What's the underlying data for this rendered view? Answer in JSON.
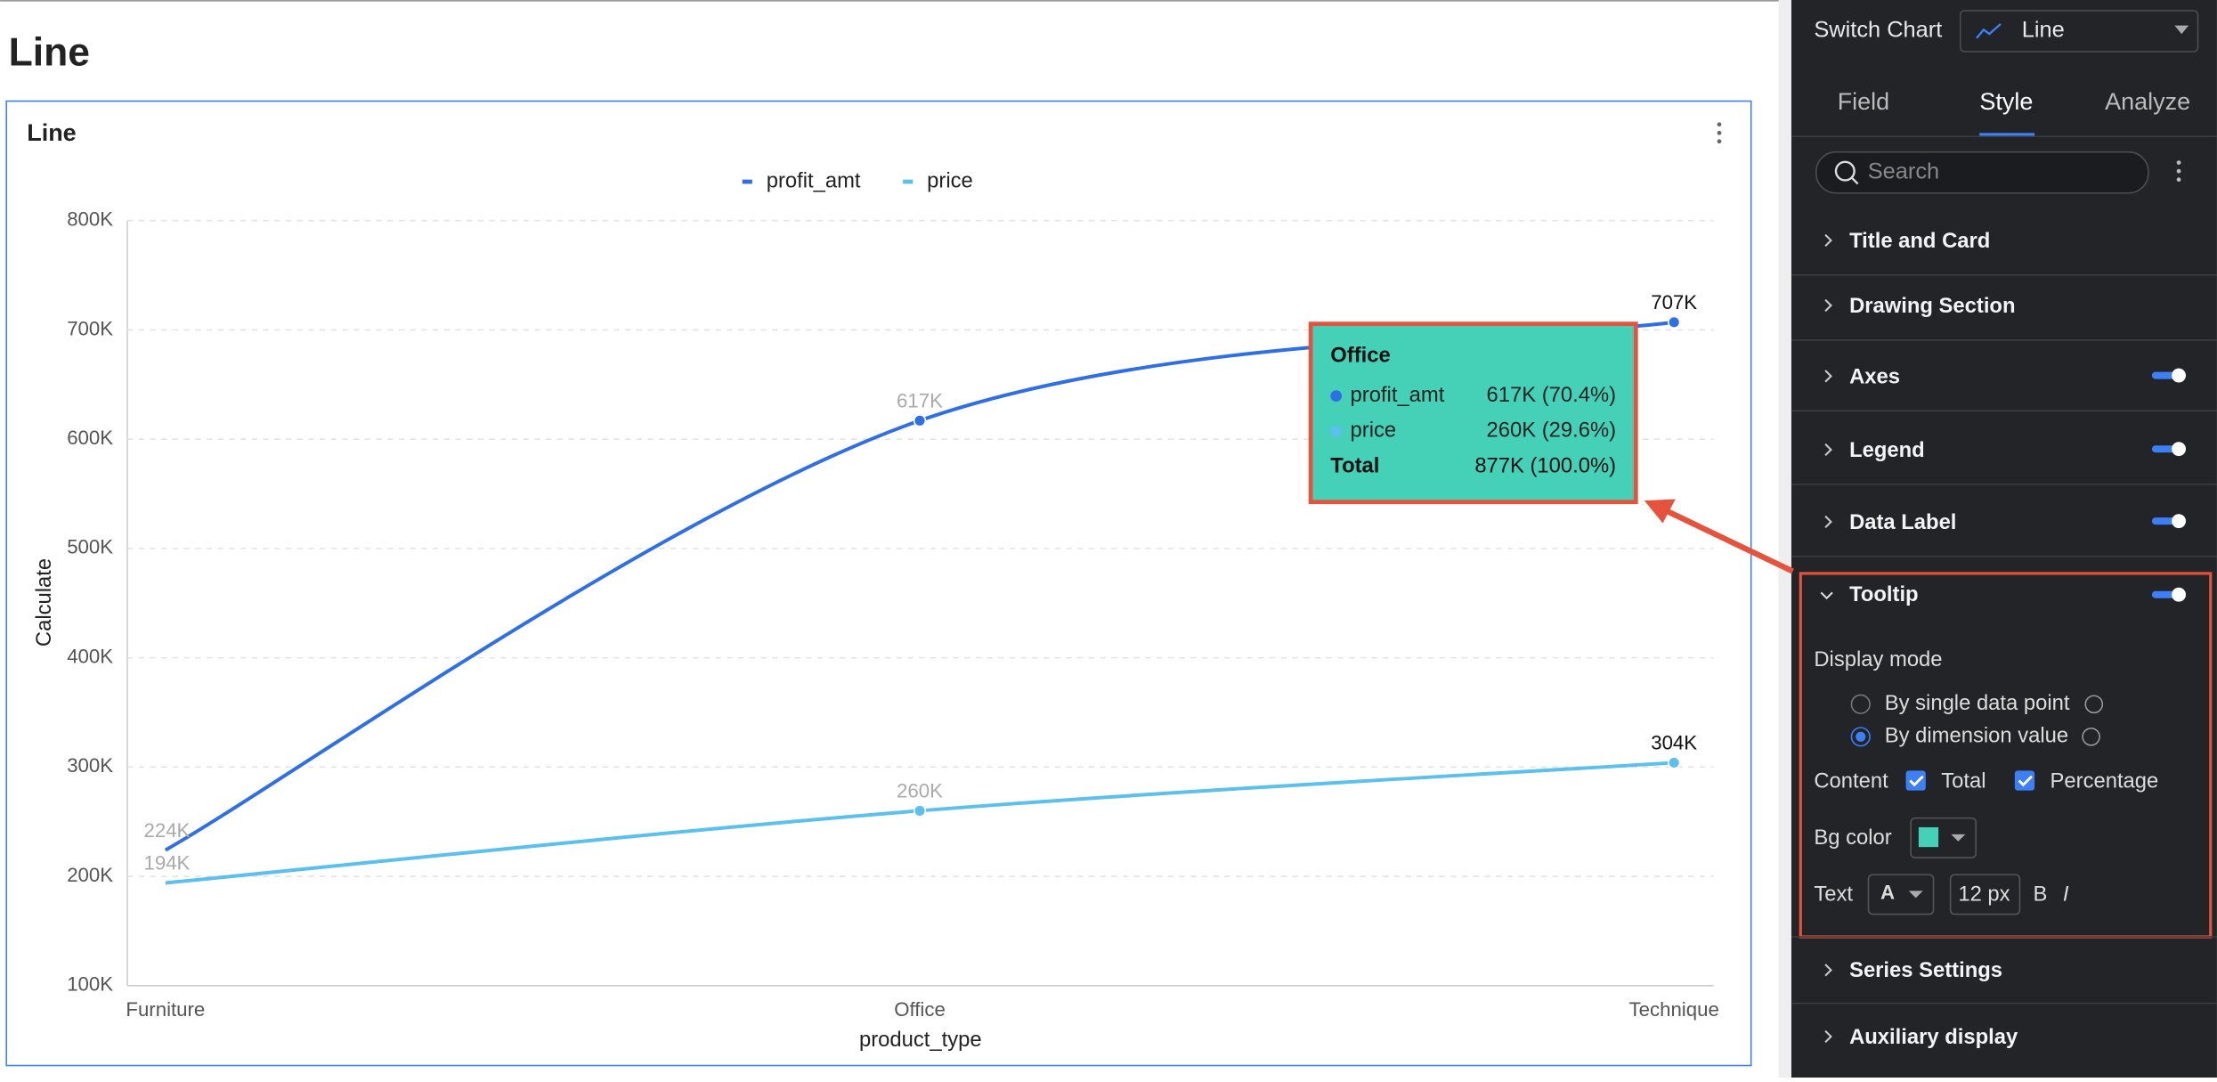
{
  "page_title": "Line",
  "chart_data": {
    "type": "line",
    "title": "Line",
    "categories": [
      "Furniture",
      "Office",
      "Technique"
    ],
    "series": [
      {
        "name": "profit_amt",
        "color": "#2f6fe4",
        "values": [
          224000,
          617000,
          707000
        ],
        "value_labels": [
          "224K",
          "617K",
          "707K"
        ]
      },
      {
        "name": "price",
        "color": "#5bc0eb",
        "values": [
          194000,
          260000,
          304000
        ],
        "value_labels": [
          "194K",
          "260K",
          "304K"
        ]
      }
    ],
    "ylim": [
      100000,
      800000
    ],
    "yticks": [
      {
        "value": 100000,
        "label": "100K"
      },
      {
        "value": 200000,
        "label": "200K"
      },
      {
        "value": 300000,
        "label": "300K"
      },
      {
        "value": 400000,
        "label": "400K"
      },
      {
        "value": 500000,
        "label": "500K"
      },
      {
        "value": 600000,
        "label": "600K"
      },
      {
        "value": 700000,
        "label": "700K"
      },
      {
        "value": 800000,
        "label": "800K"
      }
    ],
    "xlabel": "product_type",
    "ylabel": "Calculate",
    "grid": true,
    "legend": "top",
    "tooltip": {
      "rows": [
        "617K (70.4%)",
        "260K (29.6%)"
      ],
      "total_label": "Total",
      "total": "877K (100.0%)"
    }
  },
  "panel": {
    "switch_chart_label": "Switch Chart",
    "chart_type": "Line",
    "tabs": [
      "Field",
      "Style",
      "Analyze"
    ],
    "search_placeholder": "Search",
    "sections": [
      "Title and Card",
      "Drawing Section",
      "Axes",
      "Legend",
      "Data Label"
    ],
    "tooltip": {
      "title": "Tooltip",
      "display_mode_label": "Display mode",
      "modes": [
        "By single data point",
        "By dimension value"
      ],
      "content_label": "Content",
      "content_options": [
        "Total",
        "Percentage"
      ],
      "bg_color_label": "Bg color",
      "text_label": "Text",
      "font_icon": "A",
      "font_size": "12 px",
      "bold": "B",
      "italic": "I"
    },
    "sections_after": [
      "Series Settings",
      "Auxiliary display"
    ]
  }
}
